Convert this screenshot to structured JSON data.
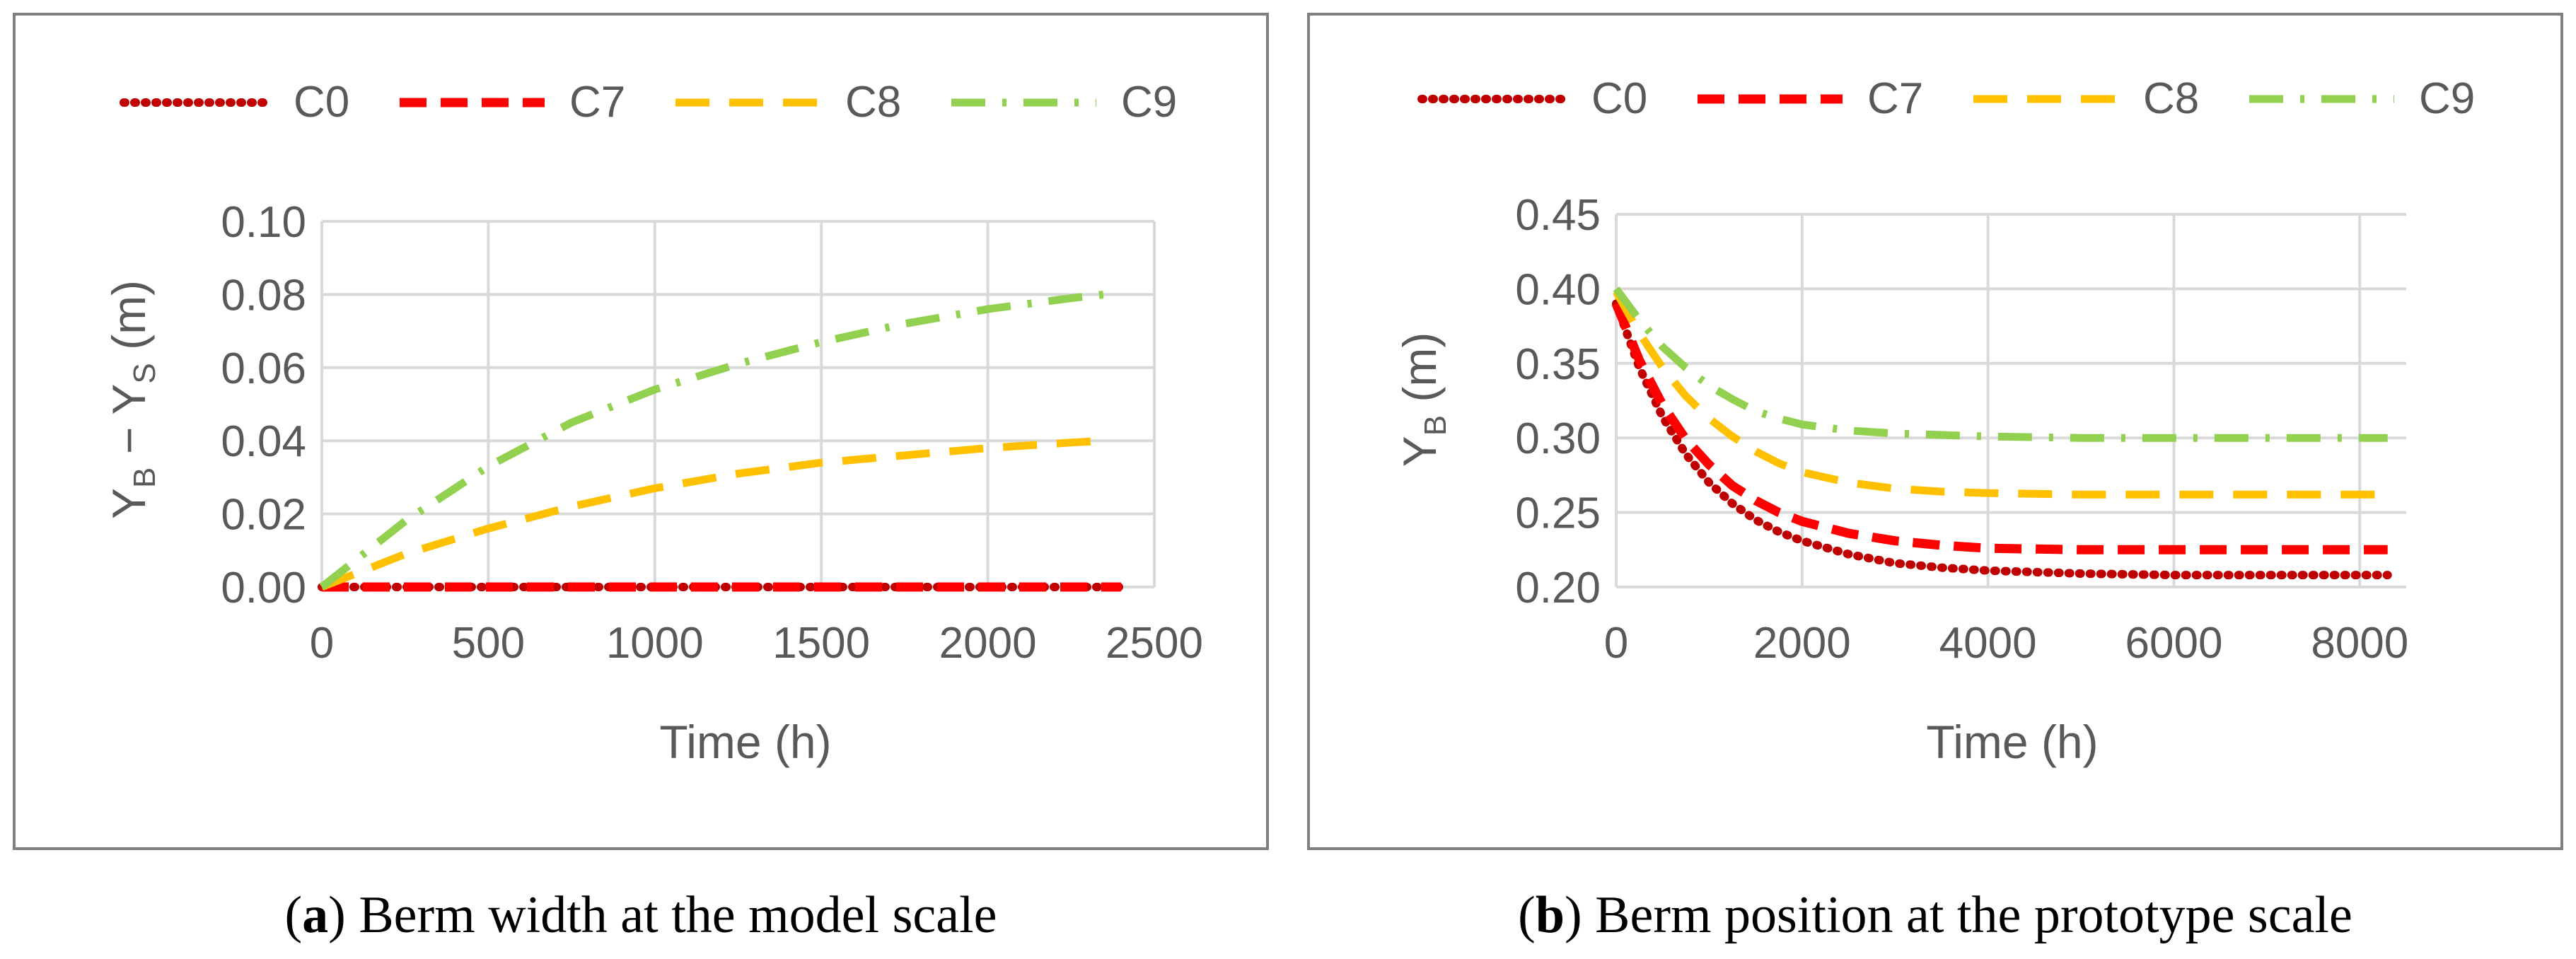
{
  "colors": {
    "frame": "#808080",
    "grid": "#d9d9d9",
    "text": "#595959",
    "C0": "#c00000",
    "C7": "#ff0000",
    "C8": "#ffc000",
    "C9": "#92d050"
  },
  "chart_data": [
    {
      "type": "line",
      "id": "a",
      "caption": {
        "letter": "a",
        "paren_open": "(",
        "paren_close": ")",
        "text": " Berm width at the model scale"
      },
      "title": "",
      "xlabel": "Time (h)",
      "ylabel": {
        "main": "Y",
        "sub1": "B",
        "mid": " − Y",
        "sub2": "S",
        "unit": " (m)"
      },
      "xlim": [
        0,
        2500
      ],
      "ylim": [
        0,
        0.1
      ],
      "xticks": [
        "0",
        "500",
        "1000",
        "1500",
        "2000",
        "2500"
      ],
      "yticks": [
        "0.00",
        "0.02",
        "0.04",
        "0.06",
        "0.08",
        "0.10"
      ],
      "grid": true,
      "legend": "top",
      "series": [
        {
          "name": "C0",
          "style": "dotted",
          "x": [
            0,
            300,
            600,
            1000,
            1500,
            2000,
            2400
          ],
          "y": [
            0,
            0,
            0,
            0,
            0,
            0,
            0
          ]
        },
        {
          "name": "C7",
          "style": "dashed",
          "x": [
            0,
            300,
            600,
            1000,
            1500,
            2000,
            2400
          ],
          "y": [
            0,
            0,
            0,
            0,
            0,
            0,
            0
          ]
        },
        {
          "name": "C8",
          "style": "longdash",
          "x": [
            0,
            250,
            500,
            750,
            1000,
            1250,
            1500,
            1750,
            2000,
            2250,
            2350
          ],
          "y": [
            0,
            0.009,
            0.016,
            0.022,
            0.027,
            0.031,
            0.034,
            0.036,
            0.038,
            0.0395,
            0.04
          ]
        },
        {
          "name": "C9",
          "style": "dashdot",
          "x": [
            0,
            250,
            500,
            750,
            1000,
            1250,
            1500,
            1750,
            2000,
            2250,
            2350
          ],
          "y": [
            0,
            0.018,
            0.033,
            0.045,
            0.054,
            0.061,
            0.067,
            0.072,
            0.076,
            0.079,
            0.08
          ]
        }
      ]
    },
    {
      "type": "line",
      "id": "b",
      "caption": {
        "letter": "b",
        "paren_open": "(",
        "paren_close": ")",
        "text": " Berm position at the prototype scale"
      },
      "title": "",
      "xlabel": "Time (h)",
      "ylabel": {
        "main": "Y",
        "sub1": "B",
        "mid": "",
        "sub2": "",
        "unit": " (m)"
      },
      "xlim": [
        0,
        8500
      ],
      "ylim": [
        0.2,
        0.45
      ],
      "xticks": [
        "0",
        "2000",
        "4000",
        "6000",
        "8000"
      ],
      "xtick_values": [
        0,
        2000,
        4000,
        6000,
        8000
      ],
      "yticks": [
        "0.20",
        "0.25",
        "0.30",
        "0.35",
        "0.40",
        "0.45"
      ],
      "grid": true,
      "legend": "top",
      "series": [
        {
          "name": "C0",
          "style": "dotted",
          "x": [
            0,
            250,
            500,
            750,
            1000,
            1250,
            1500,
            1750,
            2000,
            2500,
            3000,
            3500,
            4000,
            5000,
            6000,
            7000,
            8000,
            8300
          ],
          "y": [
            0.39,
            0.347,
            0.314,
            0.289,
            0.27,
            0.256,
            0.245,
            0.237,
            0.231,
            0.222,
            0.216,
            0.213,
            0.211,
            0.209,
            0.208,
            0.208,
            0.208,
            0.208
          ]
        },
        {
          "name": "C7",
          "style": "dashed",
          "x": [
            0,
            250,
            500,
            750,
            1000,
            1250,
            1500,
            1750,
            2000,
            2500,
            3000,
            3500,
            4000,
            5000,
            6000,
            7000,
            8000,
            8300
          ],
          "y": [
            0.39,
            0.352,
            0.322,
            0.299,
            0.282,
            0.268,
            0.258,
            0.25,
            0.244,
            0.236,
            0.231,
            0.228,
            0.226,
            0.225,
            0.225,
            0.225,
            0.225,
            0.225
          ]
        },
        {
          "name": "C8",
          "style": "longdash",
          "x": [
            0,
            250,
            500,
            750,
            1000,
            1250,
            1500,
            1750,
            2000,
            2500,
            3000,
            3500,
            4000,
            5000,
            6000,
            7000,
            8000,
            8300
          ],
          "y": [
            0.398,
            0.37,
            0.347,
            0.328,
            0.313,
            0.301,
            0.291,
            0.283,
            0.277,
            0.27,
            0.266,
            0.264,
            0.263,
            0.262,
            0.262,
            0.262,
            0.262,
            0.262
          ]
        },
        {
          "name": "C9",
          "style": "dashdot",
          "x": [
            0,
            250,
            500,
            750,
            1000,
            1250,
            1500,
            1750,
            2000,
            2500,
            3000,
            3500,
            4000,
            5000,
            6000,
            7000,
            8000,
            8300
          ],
          "y": [
            0.4,
            0.379,
            0.361,
            0.347,
            0.335,
            0.326,
            0.318,
            0.313,
            0.309,
            0.305,
            0.303,
            0.302,
            0.301,
            0.3,
            0.3,
            0.3,
            0.3,
            0.3
          ]
        }
      ]
    }
  ]
}
